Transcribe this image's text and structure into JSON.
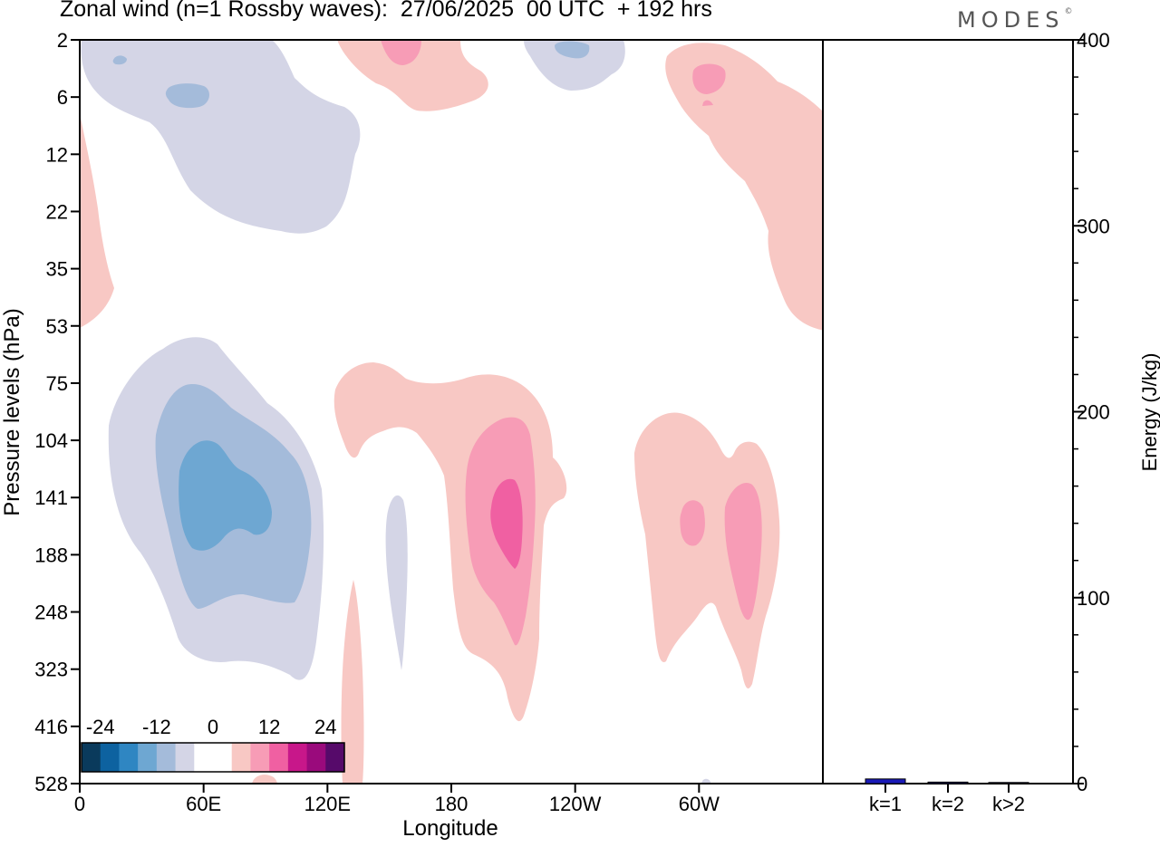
{
  "title": "Zonal wind (n=1 Rossby waves):  27/06/2025  00 UTC  + 192 hrs",
  "logo": "MODES",
  "logo_mark": "©",
  "chart_data": [
    {
      "type": "heatmap",
      "subtype": "filled-contour",
      "xlabel": "Longitude",
      "ylabel": "Pressure levels (hPa)",
      "x_ticks": [
        "0",
        "60E",
        "120E",
        "180",
        "120W",
        "60W"
      ],
      "x_tick_degrees": [
        0,
        60,
        120,
        180,
        240,
        300
      ],
      "xlim": [
        0,
        360
      ],
      "y_ticks": [
        "2",
        "6",
        "12",
        "22",
        "35",
        "53",
        "75",
        "104",
        "141",
        "188",
        "248",
        "323",
        "416",
        "528"
      ],
      "y_scale": "pressure levels, top to bottom",
      "grid": false,
      "colorbar": {
        "tick_labels": [
          "-24",
          "-12",
          "0",
          "12",
          "24"
        ],
        "colors": [
          "#0a3a5c",
          "#0d62a0",
          "#2f86c2",
          "#6ea7d2",
          "#a4bbda",
          "#d4d5e6",
          "#ffffff",
          "#ffffff",
          "#f8c8c4",
          "#f79cb6",
          "#f060a2",
          "#c8178a",
          "#9a0a7c",
          "#560a6a"
        ]
      },
      "features": [
        {
          "sign": "negative",
          "peak": "-12",
          "longitude": "45E-75E",
          "level": "104-188 hPa"
        },
        {
          "sign": "negative",
          "peak": "-8",
          "longitude": "10E-70E",
          "level": "2-12 hPa"
        },
        {
          "sign": "negative",
          "peak": "-8",
          "longitude": "125W-110W",
          "level": "2 hPa"
        },
        {
          "sign": "positive",
          "peak": "12",
          "longitude": "160W-155W",
          "level": "141-188 hPa"
        },
        {
          "sign": "positive",
          "peak": "8",
          "longitude": "75W-45W",
          "level": "141-248 hPa"
        },
        {
          "sign": "positive",
          "peak": "8",
          "longitude": "160E-170E",
          "level": "2 hPa"
        },
        {
          "sign": "positive",
          "peak": "8",
          "longitude": "60W-50W",
          "level": "6 hPa"
        }
      ]
    },
    {
      "type": "bar",
      "categories": [
        "k=1",
        "k=2",
        "k>2"
      ],
      "values": [
        2.5,
        0.8,
        0.6
      ],
      "ylabel": "Energy (J/kg)",
      "ylim": [
        0,
        400
      ],
      "y_ticks": [
        "0",
        "100",
        "200",
        "300",
        "400"
      ],
      "bar_colors": [
        "#1a1ab8",
        "#0a0a6a",
        "#0a0a6a"
      ]
    }
  ]
}
